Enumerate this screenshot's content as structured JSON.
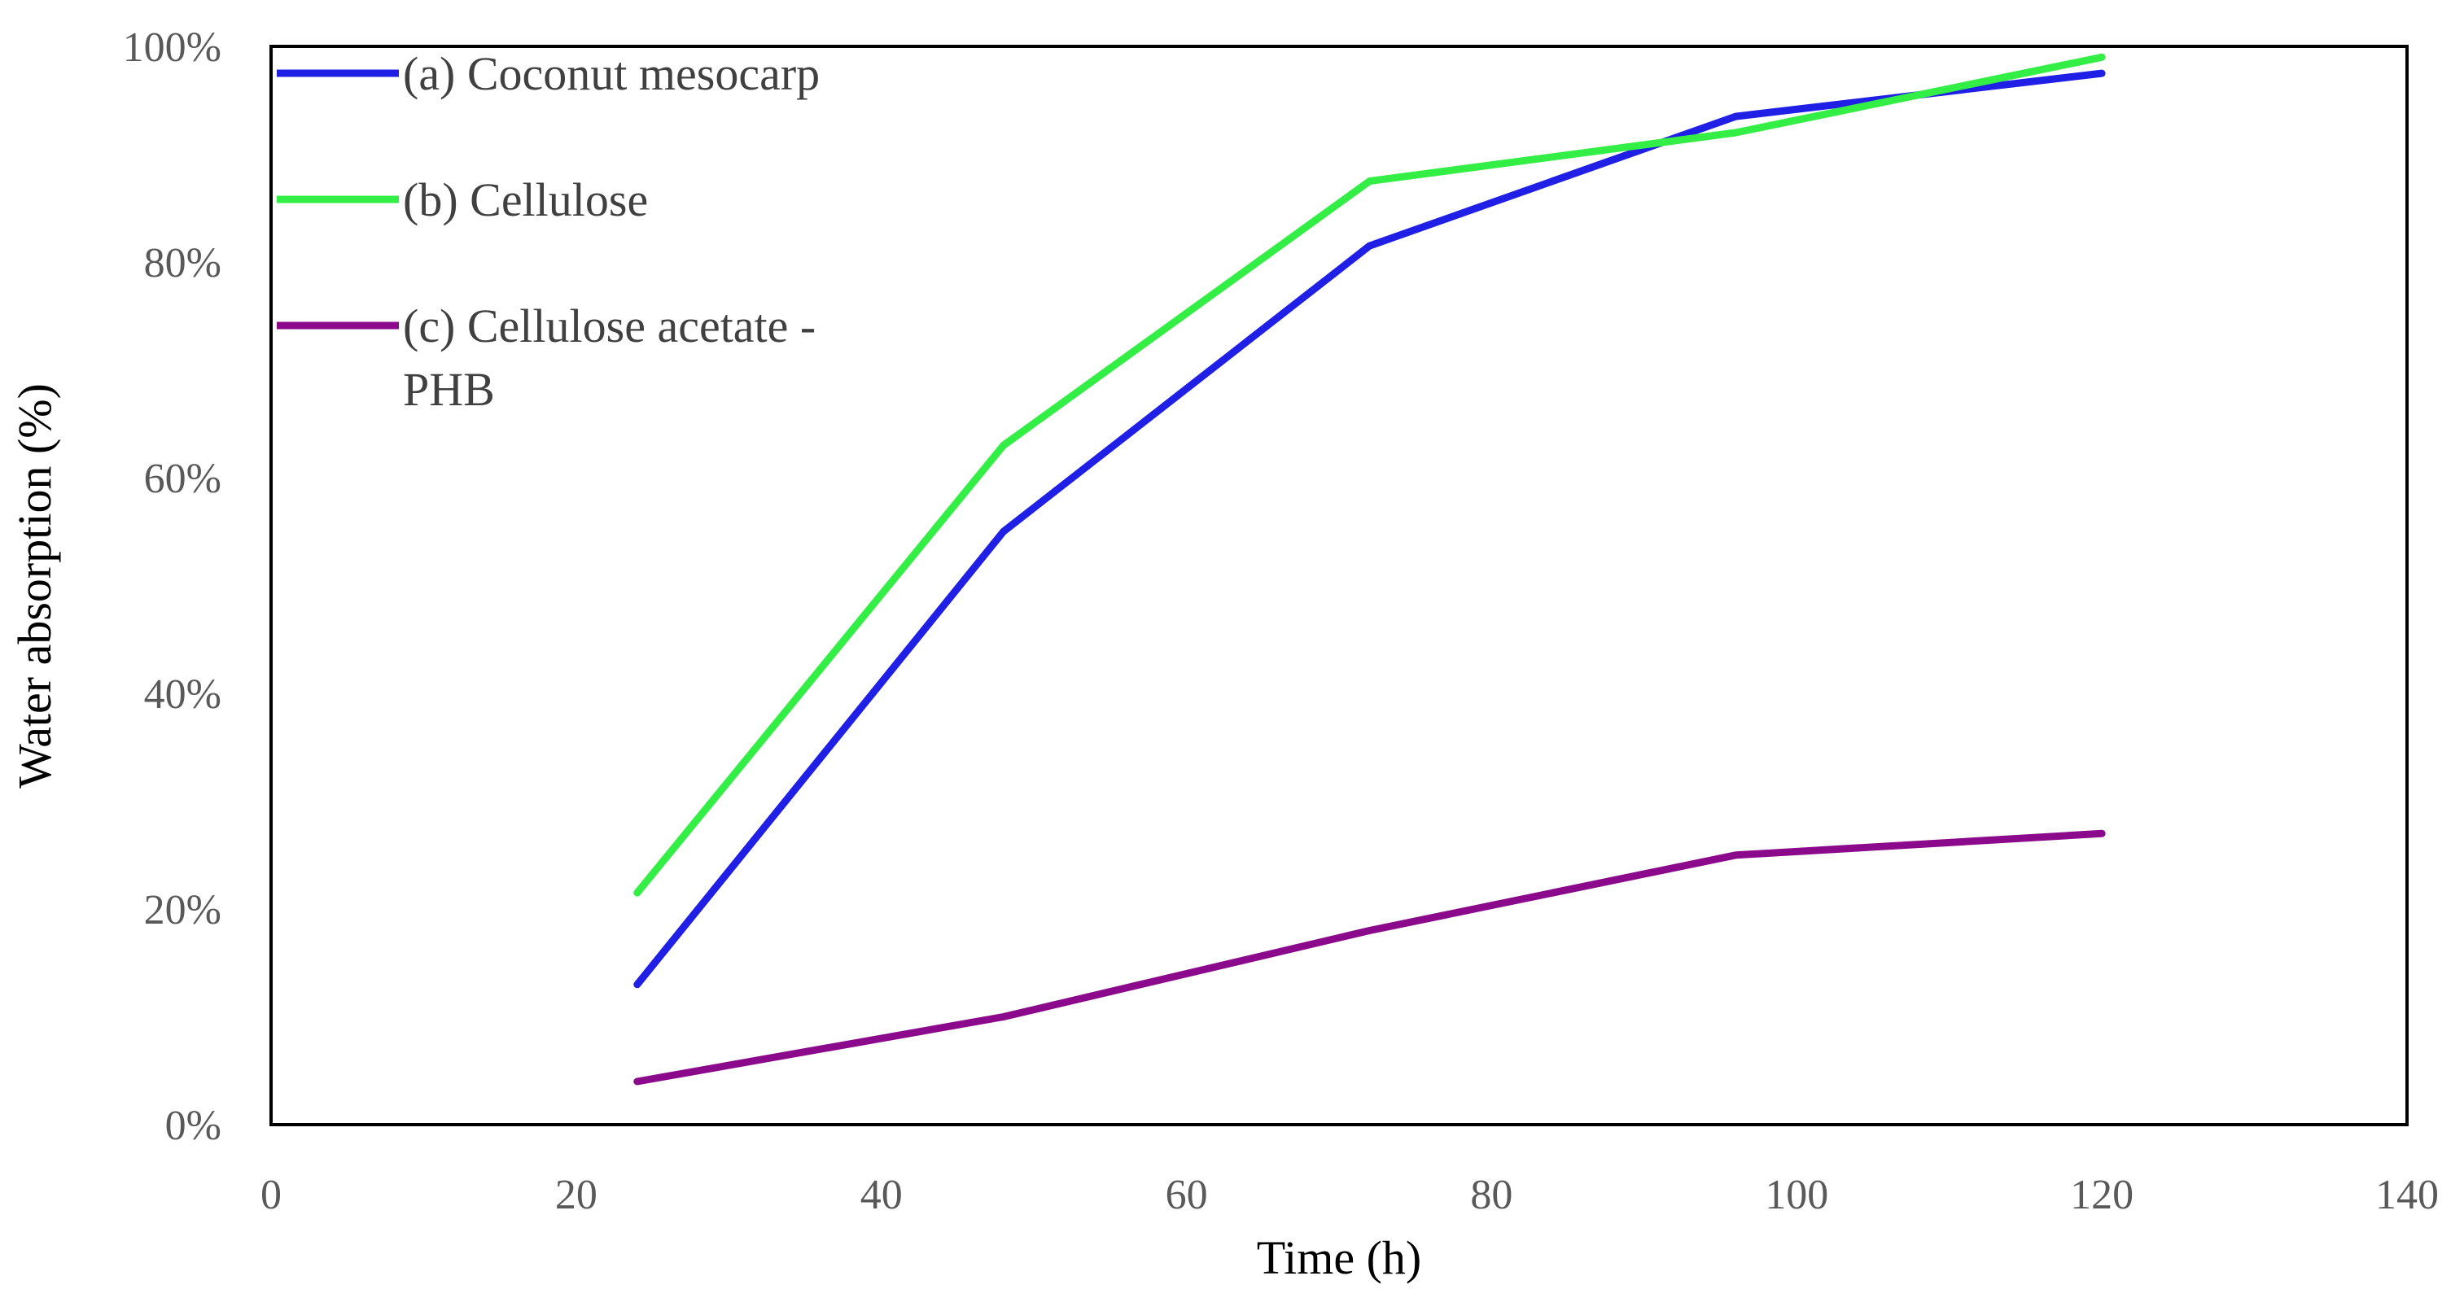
{
  "chart_data": {
    "type": "line",
    "title": "",
    "xlabel": "Time  (h)",
    "ylabel": "Water absorption (%)",
    "xlim": [
      0,
      140
    ],
    "ylim": [
      0,
      1
    ],
    "x_ticks": [
      0,
      20,
      40,
      60,
      80,
      100,
      120,
      140
    ],
    "x_tick_labels": [
      "0",
      "20",
      "40",
      "60",
      "80",
      "100",
      "120",
      "140"
    ],
    "y_ticks": [
      0,
      0.2,
      0.4,
      0.6,
      0.8,
      1.0
    ],
    "y_tick_labels": [
      "0%",
      "20%",
      "40%",
      "60%",
      "80%",
      "100%"
    ],
    "grid": false,
    "legend_position": "top-left",
    "series": [
      {
        "name": "(a) Coconut mesocarp",
        "label_lines": [
          "(a) Coconut mesocarp"
        ],
        "color": "#1f1fe6",
        "x": [
          24,
          48,
          72,
          96,
          120
        ],
        "y": [
          0.13,
          0.55,
          0.815,
          0.935,
          0.975
        ]
      },
      {
        "name": "(b) Cellulose",
        "label_lines": [
          "(b) Cellulose"
        ],
        "color": "#33ee44",
        "x": [
          24,
          48,
          72,
          96,
          120
        ],
        "y": [
          0.215,
          0.63,
          0.875,
          0.92,
          0.99
        ]
      },
      {
        "name": "(c) Cellulose acetate - PHB",
        "label_lines": [
          "(c) Cellulose acetate -",
          "PHB"
        ],
        "color": "#8b0a8b",
        "x": [
          24,
          48,
          72,
          96,
          120
        ],
        "y": [
          0.04,
          0.1,
          0.18,
          0.25,
          0.27
        ]
      }
    ]
  }
}
